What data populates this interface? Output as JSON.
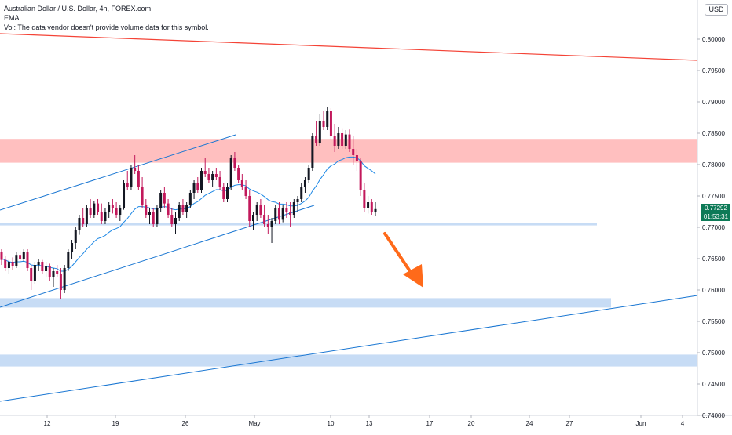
{
  "header": {
    "symbol_line": "Australian Dollar / U.S. Dollar, 4h, FOREX.com",
    "indicator": "EMA",
    "volume_note": "Vol: The data vendor doesn't provide volume data for this symbol."
  },
  "currency_badge": "USD",
  "price_tag": {
    "price": "0.77292",
    "countdown": "01:53:31"
  },
  "colors": {
    "up": "#131722",
    "down": "#c2185b",
    "ema": "#1e88e5",
    "trend": "#1976d2",
    "red_line": "#f44336",
    "resistance": "#ffbcbc",
    "support": "#c7dcf5",
    "arrow": "#ff6a1a",
    "tag": "#0d7a57"
  },
  "chart_data": {
    "type": "candlestick",
    "title": "Australian Dollar / U.S. Dollar, 4h, FOREX.com",
    "y_ticks": [
      "0.80000",
      "0.79500",
      "0.79000",
      "0.78500",
      "0.78000",
      "0.77500",
      "0.77000",
      "0.76500",
      "0.76000",
      "0.75500",
      "0.75000",
      "0.74500",
      "0.74000"
    ],
    "x_ticks": [
      "12",
      "19",
      "26",
      "May",
      "10",
      "13",
      "17",
      "20",
      "24",
      "27",
      "Jun",
      "4"
    ],
    "last_price": 0.77292,
    "candles_ohlc": [
      [
        0.766,
        0.7665,
        0.764,
        0.7648
      ],
      [
        0.7648,
        0.7655,
        0.763,
        0.7635
      ],
      [
        0.7635,
        0.7648,
        0.7625,
        0.7645
      ],
      [
        0.7645,
        0.7652,
        0.7632,
        0.7638
      ],
      [
        0.7638,
        0.766,
        0.7635,
        0.7656
      ],
      [
        0.7656,
        0.7662,
        0.7645,
        0.765
      ],
      [
        0.765,
        0.7665,
        0.7645,
        0.766
      ],
      [
        0.766,
        0.7665,
        0.763,
        0.7635
      ],
      [
        0.7635,
        0.764,
        0.76,
        0.7615
      ],
      [
        0.7615,
        0.7645,
        0.761,
        0.764
      ],
      [
        0.764,
        0.765,
        0.763,
        0.7645
      ],
      [
        0.7645,
        0.7648,
        0.7625,
        0.763
      ],
      [
        0.763,
        0.7645,
        0.762,
        0.7638
      ],
      [
        0.7638,
        0.7642,
        0.7615,
        0.762
      ],
      [
        0.762,
        0.7635,
        0.7605,
        0.763
      ],
      [
        0.763,
        0.764,
        0.762,
        0.7625
      ],
      [
        0.7625,
        0.7635,
        0.7585,
        0.76
      ],
      [
        0.76,
        0.764,
        0.7595,
        0.7635
      ],
      [
        0.7635,
        0.7665,
        0.763,
        0.766
      ],
      [
        0.766,
        0.768,
        0.765,
        0.7675
      ],
      [
        0.7675,
        0.77,
        0.7665,
        0.7695
      ],
      [
        0.7695,
        0.772,
        0.7688,
        0.7715
      ],
      [
        0.7715,
        0.773,
        0.77,
        0.7705
      ],
      [
        0.7705,
        0.7735,
        0.77,
        0.773
      ],
      [
        0.773,
        0.7745,
        0.7715,
        0.772
      ],
      [
        0.772,
        0.7742,
        0.7715,
        0.7738
      ],
      [
        0.7738,
        0.7745,
        0.772,
        0.7725
      ],
      [
        0.7725,
        0.7738,
        0.7705,
        0.771
      ],
      [
        0.771,
        0.773,
        0.7705,
        0.7725
      ],
      [
        0.7725,
        0.774,
        0.7715,
        0.7735
      ],
      [
        0.7735,
        0.7745,
        0.7722,
        0.773
      ],
      [
        0.773,
        0.774,
        0.7715,
        0.772
      ],
      [
        0.772,
        0.7735,
        0.771,
        0.773
      ],
      [
        0.773,
        0.7775,
        0.7728,
        0.777
      ],
      [
        0.777,
        0.779,
        0.776,
        0.7765
      ],
      [
        0.7765,
        0.78,
        0.776,
        0.7795
      ],
      [
        0.7795,
        0.7815,
        0.7785,
        0.779
      ],
      [
        0.779,
        0.78,
        0.776,
        0.7765
      ],
      [
        0.7765,
        0.778,
        0.773,
        0.7735
      ],
      [
        0.7735,
        0.7745,
        0.7715,
        0.772
      ],
      [
        0.772,
        0.773,
        0.7705,
        0.7725
      ],
      [
        0.7725,
        0.773,
        0.77,
        0.7705
      ],
      [
        0.7705,
        0.7735,
        0.77,
        0.773
      ],
      [
        0.773,
        0.776,
        0.7725,
        0.7755
      ],
      [
        0.7755,
        0.7765,
        0.773,
        0.7738
      ],
      [
        0.7738,
        0.7745,
        0.7715,
        0.772
      ],
      [
        0.772,
        0.773,
        0.77,
        0.7705
      ],
      [
        0.7705,
        0.7725,
        0.769,
        0.7715
      ],
      [
        0.7715,
        0.774,
        0.771,
        0.7735
      ],
      [
        0.7735,
        0.7745,
        0.772,
        0.7725
      ],
      [
        0.7725,
        0.774,
        0.7715,
        0.7735
      ],
      [
        0.7735,
        0.776,
        0.773,
        0.7755
      ],
      [
        0.7755,
        0.7775,
        0.7745,
        0.777
      ],
      [
        0.777,
        0.778,
        0.7755,
        0.776
      ],
      [
        0.776,
        0.7795,
        0.7755,
        0.779
      ],
      [
        0.779,
        0.781,
        0.778,
        0.7785
      ],
      [
        0.7785,
        0.7795,
        0.777,
        0.7775
      ],
      [
        0.7775,
        0.779,
        0.7765,
        0.7785
      ],
      [
        0.7785,
        0.7795,
        0.7775,
        0.778
      ],
      [
        0.778,
        0.779,
        0.776,
        0.7765
      ],
      [
        0.7765,
        0.777,
        0.774,
        0.7745
      ],
      [
        0.7745,
        0.777,
        0.774,
        0.7765
      ],
      [
        0.7765,
        0.7815,
        0.776,
        0.781
      ],
      [
        0.781,
        0.782,
        0.779,
        0.7795
      ],
      [
        0.7795,
        0.78,
        0.777,
        0.7775
      ],
      [
        0.7775,
        0.7785,
        0.776,
        0.7765
      ],
      [
        0.7765,
        0.7775,
        0.7745,
        0.775
      ],
      [
        0.775,
        0.776,
        0.77,
        0.771
      ],
      [
        0.771,
        0.7725,
        0.7695,
        0.772
      ],
      [
        0.772,
        0.774,
        0.771,
        0.7735
      ],
      [
        0.7735,
        0.7745,
        0.7715,
        0.772
      ],
      [
        0.772,
        0.7735,
        0.77,
        0.7705
      ],
      [
        0.7705,
        0.772,
        0.769,
        0.77
      ],
      [
        0.77,
        0.7715,
        0.7675,
        0.771
      ],
      [
        0.771,
        0.7735,
        0.7705,
        0.773
      ],
      [
        0.773,
        0.774,
        0.7705,
        0.7712
      ],
      [
        0.7712,
        0.7735,
        0.7708,
        0.773
      ],
      [
        0.773,
        0.774,
        0.7715,
        0.7725
      ],
      [
        0.7725,
        0.774,
        0.77,
        0.772
      ],
      [
        0.772,
        0.7745,
        0.7715,
        0.774
      ],
      [
        0.774,
        0.775,
        0.7725,
        0.7745
      ],
      [
        0.7745,
        0.777,
        0.774,
        0.7765
      ],
      [
        0.7765,
        0.778,
        0.7755,
        0.7775
      ],
      [
        0.7775,
        0.78,
        0.777,
        0.7795
      ],
      [
        0.7795,
        0.785,
        0.779,
        0.7845
      ],
      [
        0.7845,
        0.787,
        0.783,
        0.7835
      ],
      [
        0.7835,
        0.788,
        0.783,
        0.787
      ],
      [
        0.787,
        0.7885,
        0.7855,
        0.786
      ],
      [
        0.786,
        0.7892,
        0.7855,
        0.7885
      ],
      [
        0.7885,
        0.789,
        0.784,
        0.7845
      ],
      [
        0.7845,
        0.7865,
        0.782,
        0.783
      ],
      [
        0.783,
        0.786,
        0.7825,
        0.785
      ],
      [
        0.785,
        0.7858,
        0.7825,
        0.783
      ],
      [
        0.783,
        0.7855,
        0.7825,
        0.7848
      ],
      [
        0.7848,
        0.7856,
        0.782,
        0.7825
      ],
      [
        0.7825,
        0.7845,
        0.78,
        0.7815
      ],
      [
        0.7815,
        0.7825,
        0.779,
        0.7805
      ],
      [
        0.7805,
        0.781,
        0.775,
        0.776
      ],
      [
        0.776,
        0.777,
        0.7725,
        0.773
      ],
      [
        0.773,
        0.775,
        0.7722,
        0.774
      ],
      [
        0.774,
        0.7745,
        0.772,
        0.7725
      ],
      [
        0.7725,
        0.774,
        0.7718,
        0.7729
      ]
    ],
    "ema_values": [
      0.765,
      0.7648,
      0.7645,
      0.7644,
      0.7645,
      0.7645,
      0.7646,
      0.7644,
      0.764,
      0.7639,
      0.764,
      0.7638,
      0.7638,
      0.7636,
      0.7635,
      0.7634,
      0.763,
      0.763,
      0.7633,
      0.7638,
      0.7645,
      0.7652,
      0.7658,
      0.7665,
      0.7671,
      0.7677,
      0.7682,
      0.7684,
      0.7687,
      0.7692,
      0.7696,
      0.7698,
      0.7701,
      0.7708,
      0.7714,
      0.7722,
      0.7729,
      0.7733,
      0.7733,
      0.7732,
      0.7731,
      0.7729,
      0.7729,
      0.7732,
      0.7733,
      0.7732,
      0.7729,
      0.7728,
      0.7729,
      0.7729,
      0.773,
      0.7733,
      0.7738,
      0.7741,
      0.7746,
      0.7751,
      0.7754,
      0.7757,
      0.776,
      0.776,
      0.7758,
      0.7759,
      0.7764,
      0.7767,
      0.7768,
      0.7768,
      0.7766,
      0.7761,
      0.7758,
      0.7756,
      0.7753,
      0.7749,
      0.7744,
      0.7741,
      0.774,
      0.7737,
      0.7737,
      0.7736,
      0.7734,
      0.7734,
      0.7735,
      0.7738,
      0.7742,
      0.7748,
      0.7758,
      0.7766,
      0.7776,
      0.7784,
      0.7793,
      0.7798,
      0.7801,
      0.7806,
      0.7808,
      0.7811,
      0.7812,
      0.7812,
      0.7811,
      0.7806,
      0.7798,
      0.7794,
      0.779,
      0.7785
    ],
    "zones": [
      {
        "kind": "resistance",
        "from": 0.7803,
        "to": 0.7841
      },
      {
        "kind": "support",
        "from": 0.7703,
        "to": 0.7707
      },
      {
        "kind": "support",
        "from": 0.7572,
        "to": 0.7587
      },
      {
        "kind": "support",
        "from": 0.7478,
        "to": 0.7497
      }
    ]
  }
}
